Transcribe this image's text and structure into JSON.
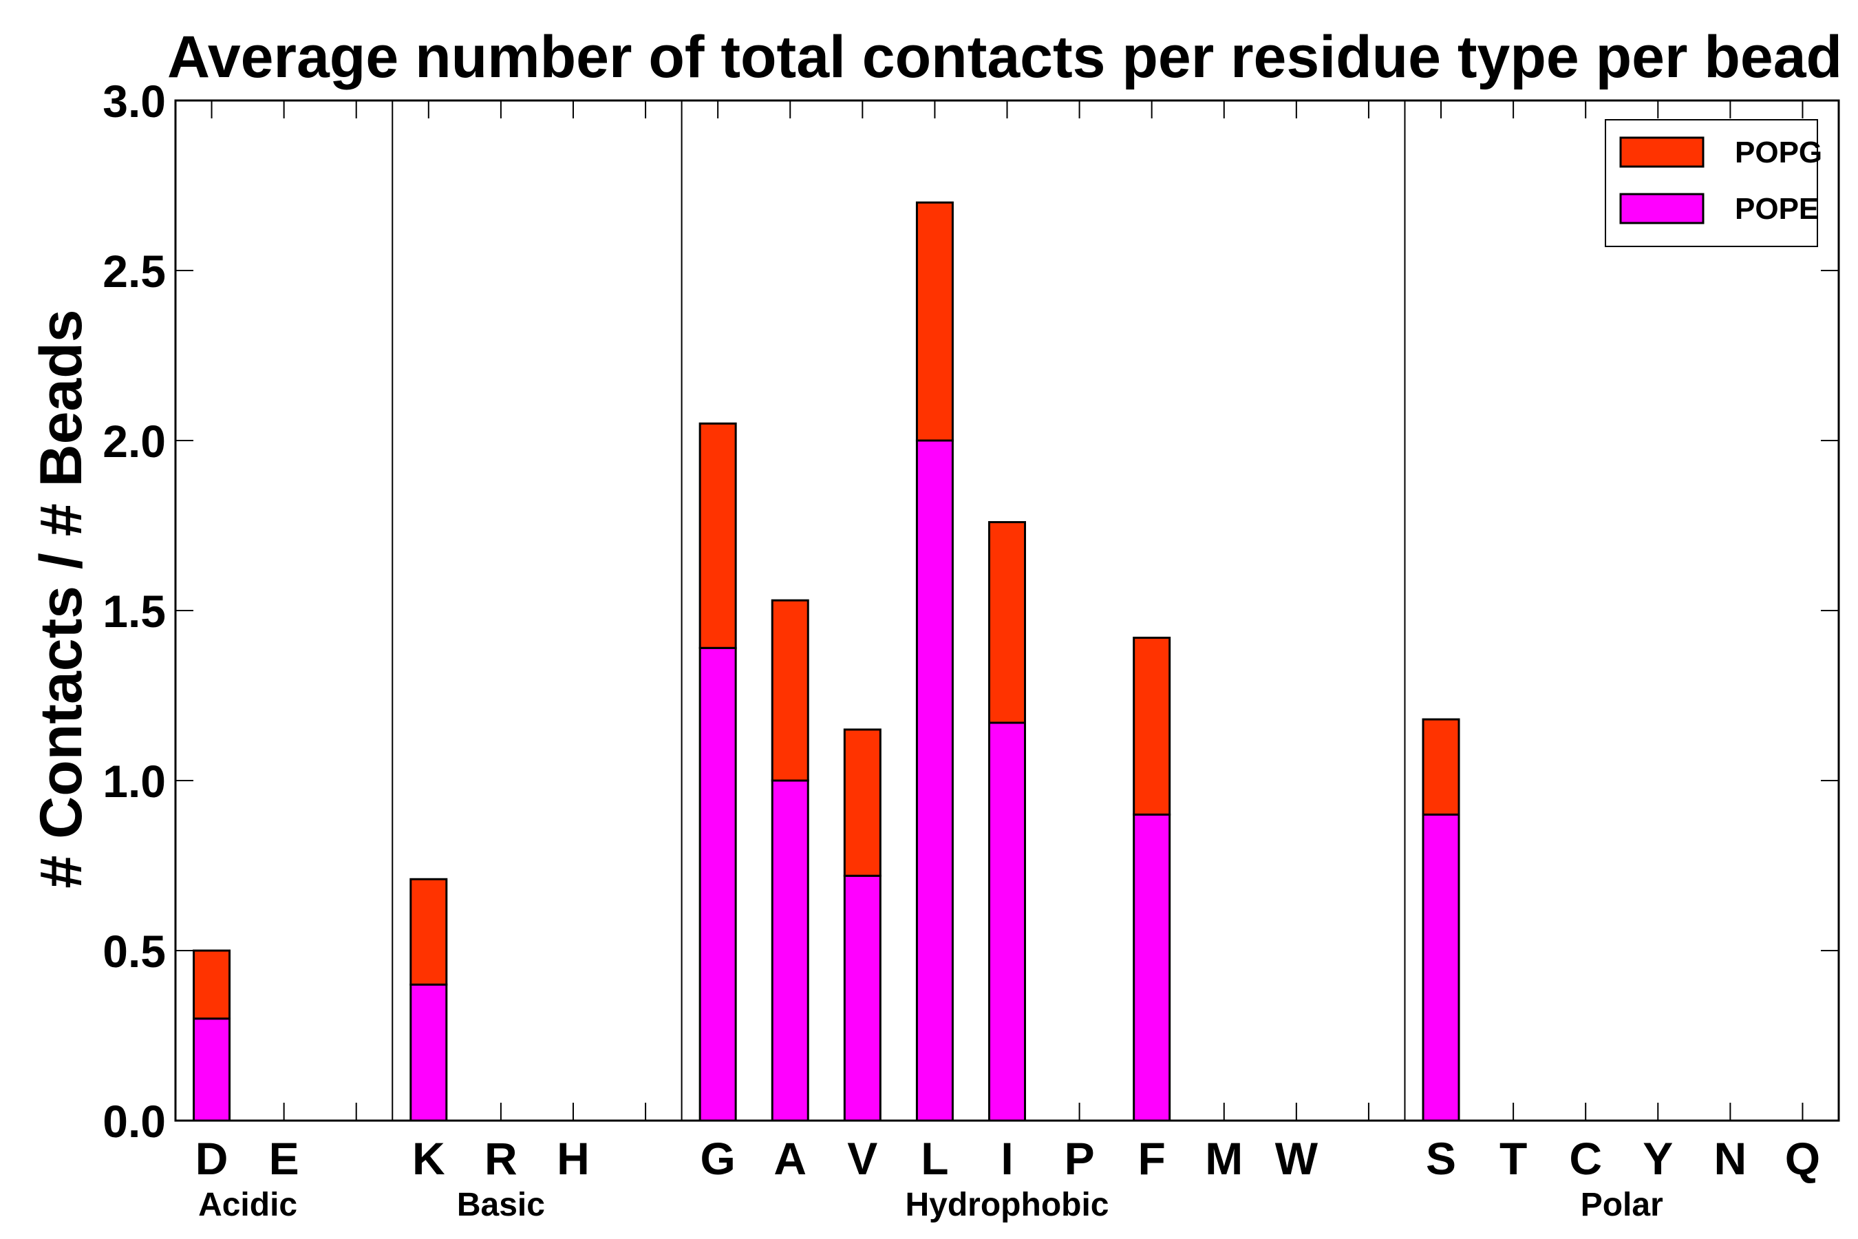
{
  "chart_data": {
    "type": "bar",
    "stacked": true,
    "title": "Average number of total contacts per residue type per bead",
    "xlabel": "",
    "ylabel": "# Contacts / # Beads",
    "ylim": [
      0,
      3.0
    ],
    "yticks": [
      "0.0",
      "0.5",
      "1.0",
      "1.5",
      "2.0",
      "2.5",
      "3.0"
    ],
    "categories": [
      "D",
      "E",
      "",
      "K",
      "R",
      "H",
      "",
      "G",
      "A",
      "V",
      "L",
      "I",
      "P",
      "F",
      "M",
      "W",
      "",
      "S",
      "T",
      "C",
      "Y",
      "N",
      "Q"
    ],
    "series": [
      {
        "name": "POPE",
        "color": "#ff00ff",
        "values": [
          0.3,
          0,
          0,
          0.4,
          0,
          0,
          0,
          1.39,
          1.0,
          0.72,
          2.0,
          1.17,
          0,
          0.9,
          0,
          0,
          0,
          0.9,
          0,
          0,
          0,
          0,
          0
        ]
      },
      {
        "name": "POPG",
        "color": "#ff3300",
        "values": [
          0.2,
          0,
          0,
          0.31,
          0,
          0,
          0,
          0.66,
          0.53,
          0.43,
          0.7,
          0.59,
          0,
          0.52,
          0,
          0,
          0,
          0.28,
          0,
          0,
          0,
          0,
          0
        ]
      }
    ],
    "groups": [
      {
        "label": "Acidic",
        "start": 0,
        "end": 1
      },
      {
        "label": "Basic",
        "start": 3,
        "end": 5
      },
      {
        "label": "Hydrophobic",
        "start": 7,
        "end": 15
      },
      {
        "label": "Polar",
        "start": 17,
        "end": 22
      }
    ],
    "separators_after": [
      2,
      6,
      16
    ],
    "legend": {
      "position": "top-right",
      "order": [
        "POPG",
        "POPE"
      ]
    },
    "grid": false
  }
}
